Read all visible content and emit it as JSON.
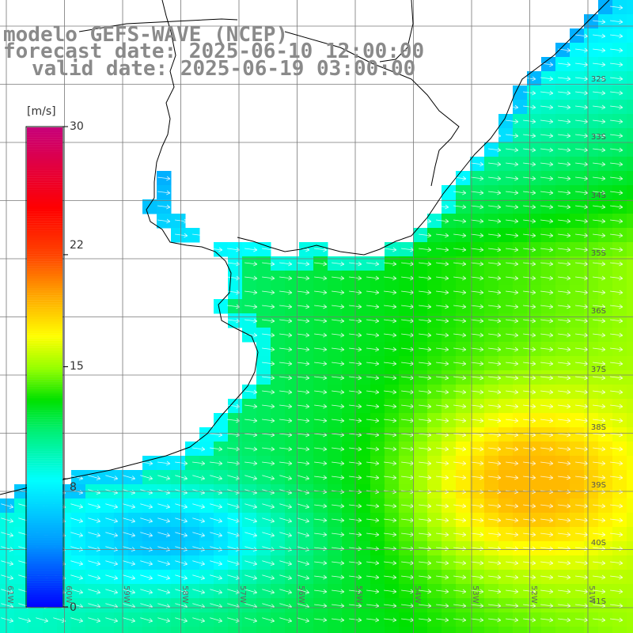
{
  "header": {
    "line1": "modelo GEFS-WAVE (NCEP)",
    "line2": "forecast date: 2025-06-10 12:00:00",
    "line3": "valid date: 2025-06-19 03:00:00"
  },
  "colorbar": {
    "unit": "[m/s]",
    "ticks": [
      "30",
      "22",
      "15",
      "8",
      "0"
    ],
    "tick_values": [
      30,
      22,
      15,
      8,
      0
    ],
    "colors": [
      "#0000ff",
      "#00a0ff",
      "#00ffff",
      "#00ff80",
      "#00e000",
      "#80ff00",
      "#ffff00",
      "#ffc000",
      "#ff6000",
      "#ff0000",
      "#e0004a",
      "#c0007a"
    ]
  },
  "latitudes": [
    "32S",
    "33S",
    "34S",
    "35S",
    "36S",
    "37S",
    "38S",
    "39S",
    "40S",
    "41S"
  ],
  "longitudes": [
    "61W",
    "60W",
    "59W",
    "58W",
    "57W",
    "56W",
    "55W",
    "54W",
    "53W",
    "52W",
    "51W"
  ],
  "grid": {
    "show": true
  }
}
